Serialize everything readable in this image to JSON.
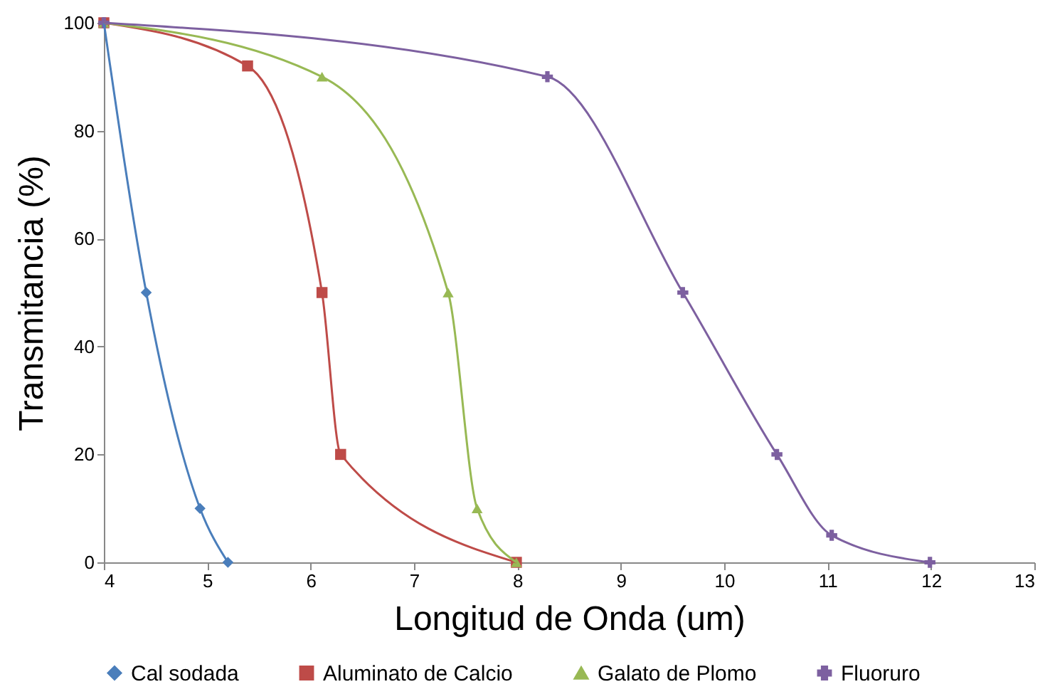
{
  "chart_data": {
    "type": "line",
    "xlabel": "Longitud de Onda (um)",
    "ylabel": "Transmitancia (%)",
    "xlim": [
      4,
      13
    ],
    "xticks": [
      4,
      5,
      6,
      7,
      8,
      9,
      10,
      11,
      12,
      13
    ],
    "ylim": [
      0,
      100
    ],
    "yticks": [
      0,
      20,
      40,
      60,
      80,
      100
    ],
    "grid": false,
    "legend": "bottom",
    "line_style": "solid",
    "series": [
      {
        "name": "Cal sodada",
        "color": "#4a7ebb",
        "marker": "diamond",
        "x": [
          4,
          4.41,
          4.93,
          5.2
        ],
        "values": [
          100,
          50,
          10,
          0
        ]
      },
      {
        "name": "Aluminato de Calcio",
        "color": "#be4b48",
        "marker": "square",
        "x": [
          4,
          5.39,
          6.11,
          6.29,
          7.99
        ],
        "values": [
          100,
          92,
          50,
          20,
          0
        ]
      },
      {
        "name": "Galato de Plomo",
        "color": "#98b954",
        "marker": "triangle",
        "x": [
          4,
          6.11,
          7.33,
          7.61,
          7.99
        ],
        "values": [
          100,
          90,
          50,
          10,
          0
        ]
      },
      {
        "name": "Fluoruro",
        "color": "#7d60a0",
        "marker": "cross",
        "x": [
          4,
          8.29,
          9.6,
          10.51,
          11.04,
          11.99
        ],
        "values": [
          100,
          90,
          50,
          20,
          5,
          0
        ]
      }
    ]
  }
}
